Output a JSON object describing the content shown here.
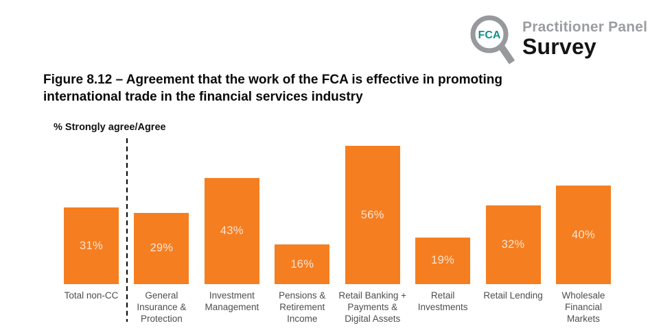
{
  "header": {
    "logo_fca": "FCA",
    "logo_line1": "Practitioner Panel",
    "logo_line2": "Survey"
  },
  "chart_data": {
    "type": "bar",
    "title": "Figure 8.12 – Agreement that the work of the FCA is effective in promoting international trade in the financial services industry",
    "ylabel": "% Strongly agree/Agree",
    "xlabel": "",
    "ylim": [
      0,
      60
    ],
    "grid": false,
    "legend": null,
    "categories": [
      "Total non-CC",
      "General Insurance & Protection",
      "Investment Management",
      "Pensions & Retirement Income",
      "Retail Banking + Payments & Digital Assets",
      "Retail Investments",
      "Retail Lending",
      "Wholesale Financial Markets"
    ],
    "category_lines": [
      [
        "Total non-CC"
      ],
      [
        "General",
        "Insurance &",
        "Protection"
      ],
      [
        "Investment",
        "Management"
      ],
      [
        "Pensions &",
        "Retirement",
        "Income"
      ],
      [
        "Retail Banking +",
        "Payments &",
        "Digital Assets"
      ],
      [
        "Retail",
        "Investments"
      ],
      [
        "Retail Lending"
      ],
      [
        "Wholesale",
        "Financial",
        "Markets"
      ]
    ],
    "values": [
      31,
      29,
      43,
      16,
      56,
      19,
      32,
      40
    ],
    "value_label_suffix": "%",
    "separator": {
      "after_category": "Total non-CC",
      "style": "dashed"
    }
  },
  "colors": {
    "bar_orange": "#F57E20",
    "bar_value_text": "#FBE5D6",
    "logo_gray": "#97999C",
    "logo_teal": "#0E938C",
    "category_text": "#4D4D4D"
  }
}
